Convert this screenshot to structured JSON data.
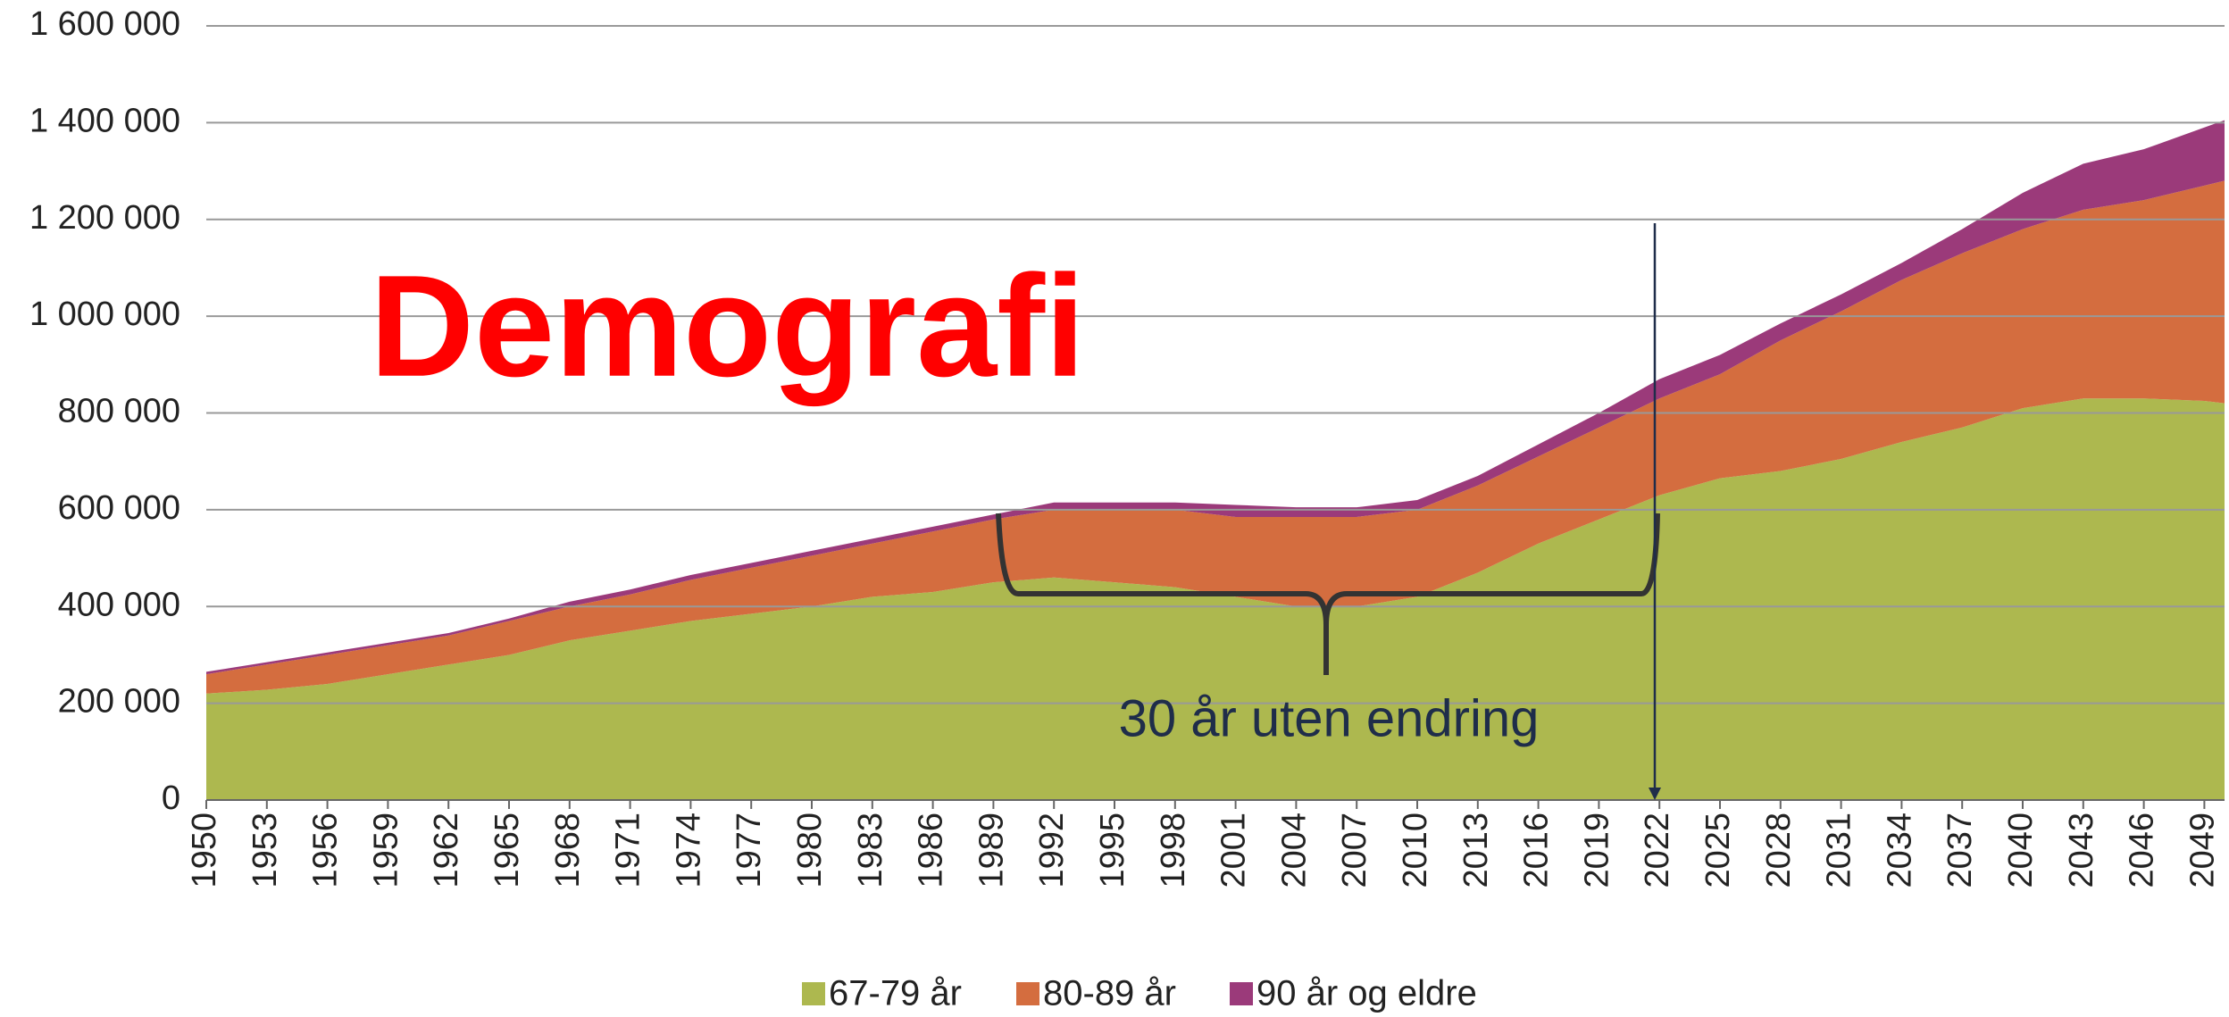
{
  "chart_data": {
    "type": "stacked_area",
    "title": "Demografi",
    "annotations": [
      "30 år uten endring"
    ],
    "x": [
      1950,
      1953,
      1956,
      1959,
      1962,
      1965,
      1968,
      1971,
      1974,
      1977,
      1980,
      1983,
      1986,
      1989,
      1992,
      1995,
      1998,
      2001,
      2004,
      2007,
      2010,
      2013,
      2016,
      2019,
      2022,
      2025,
      2028,
      2031,
      2034,
      2037,
      2040,
      2043,
      2046,
      2049,
      2050
    ],
    "series": [
      {
        "name": "67-79 år",
        "color": "#adb84f",
        "values": [
          220000,
          228000,
          240000,
          260000,
          280000,
          300000,
          330000,
          350000,
          370000,
          385000,
          400000,
          420000,
          430000,
          450000,
          460000,
          450000,
          440000,
          420000,
          400000,
          400000,
          420000,
          470000,
          530000,
          580000,
          630000,
          665000,
          680000,
          705000,
          740000,
          770000,
          810000,
          830000,
          830000,
          825000,
          820000
        ]
      },
      {
        "name": "80-89 år",
        "color": "#d46d3f",
        "values": [
          40000,
          52000,
          60000,
          60000,
          60000,
          70000,
          70000,
          75000,
          85000,
          95000,
          105000,
          110000,
          125000,
          130000,
          140000,
          150000,
          160000,
          165000,
          185000,
          185000,
          180000,
          180000,
          180000,
          190000,
          200000,
          215000,
          270000,
          305000,
          335000,
          360000,
          370000,
          390000,
          410000,
          445000,
          460000
        ]
      },
      {
        "name": "90 år og eldre",
        "color": "#9b3a7a",
        "values": [
          5000,
          5000,
          5000,
          5000,
          5000,
          5000,
          10000,
          10000,
          10000,
          10000,
          10000,
          10000,
          10000,
          10000,
          15000,
          15000,
          15000,
          25000,
          20000,
          20000,
          20000,
          20000,
          25000,
          30000,
          40000,
          40000,
          35000,
          35000,
          35000,
          50000,
          75000,
          95000,
          105000,
          120000,
          125000
        ]
      }
    ],
    "xlim": [
      1950,
      2050
    ],
    "xticks": [
      1950,
      1953,
      1956,
      1959,
      1962,
      1965,
      1968,
      1971,
      1974,
      1977,
      1980,
      1983,
      1986,
      1989,
      1992,
      1995,
      1998,
      2001,
      2004,
      2007,
      2010,
      2013,
      2016,
      2019,
      2022,
      2025,
      2028,
      2031,
      2034,
      2037,
      2040,
      2043,
      2046,
      2049
    ],
    "ylim": [
      0,
      1600000
    ],
    "yticks": [
      0,
      {
        "value": 200000,
        "label": "200 000"
      },
      {
        "value": 400000,
        "label": "400 000"
      },
      {
        "value": 600000,
        "label": "600 000"
      },
      {
        "value": 800000,
        "label": "800 000"
      },
      {
        "value": 1000000,
        "label": "1 000 000"
      },
      {
        "value": 1200000,
        "label": "1 200 000"
      },
      {
        "value": 1400000,
        "label": "1 400 000"
      },
      {
        "value": 1600000,
        "label": "1 600 000"
      }
    ],
    "grid": true,
    "legend": "bottom"
  }
}
